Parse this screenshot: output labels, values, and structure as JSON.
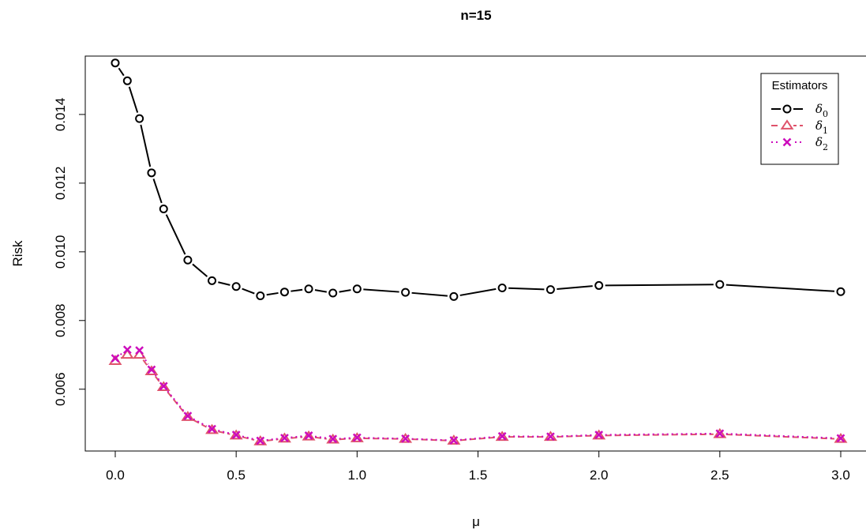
{
  "chart_data": {
    "type": "line",
    "title": "n=15",
    "xlabel": "μ",
    "ylabel": "Risk",
    "xlim": [
      0,
      3
    ],
    "ylim": [
      0.0042,
      0.0157
    ],
    "xticks": [
      0.0,
      0.5,
      1.0,
      1.5,
      2.0,
      2.5,
      3.0
    ],
    "xtick_labels": [
      "0.0",
      "0.5",
      "1.0",
      "1.5",
      "2.0",
      "2.5",
      "3.0"
    ],
    "yticks": [
      0.006,
      0.008,
      0.01,
      0.012,
      0.014
    ],
    "ytick_labels": [
      "0.006",
      "0.008",
      "0.010",
      "0.012",
      "0.014"
    ],
    "grid": false,
    "legend": {
      "title": "Estimators",
      "position": "top-right"
    },
    "x": [
      0,
      0.05,
      0.1,
      0.15,
      0.2,
      0.3,
      0.4,
      0.5,
      0.6,
      0.7,
      0.8,
      0.9,
      1.0,
      1.2,
      1.4,
      1.6,
      1.8,
      2.0,
      2.5,
      3.0
    ],
    "series": [
      {
        "name": "δ0",
        "label_base": "δ",
        "label_sub": "0",
        "color": "#000000",
        "marker": "circle",
        "line": "solid",
        "values": [
          0.0155,
          0.01498,
          0.01388,
          0.0123,
          0.01125,
          0.00976,
          0.00916,
          0.00899,
          0.00872,
          0.00883,
          0.00892,
          0.0088,
          0.00892,
          0.00882,
          0.0087,
          0.00895,
          0.0089,
          0.00902,
          0.00905,
          0.00884
        ]
      },
      {
        "name": "δ1",
        "label_base": "δ",
        "label_sub": "1",
        "color": "#df536b",
        "marker": "triangle",
        "line": "dashed",
        "values": [
          0.00682,
          0.007,
          0.007,
          0.00652,
          0.00606,
          0.00519,
          0.00481,
          0.00465,
          0.00448,
          0.00456,
          0.00462,
          0.00453,
          0.00457,
          0.00455,
          0.0045,
          0.00461,
          0.00461,
          0.00465,
          0.00469,
          0.00455
        ]
      },
      {
        "name": "δ2",
        "label_base": "δ",
        "label_sub": "2",
        "color": "#cd0bbc",
        "marker": "cross",
        "line": "dotted",
        "values": [
          0.0069,
          0.00715,
          0.00713,
          0.00657,
          0.00609,
          0.00522,
          0.00484,
          0.00467,
          0.0045,
          0.00458,
          0.00465,
          0.00455,
          0.00459,
          0.00456,
          0.00451,
          0.00463,
          0.00462,
          0.00467,
          0.00471,
          0.00457
        ]
      }
    ]
  }
}
